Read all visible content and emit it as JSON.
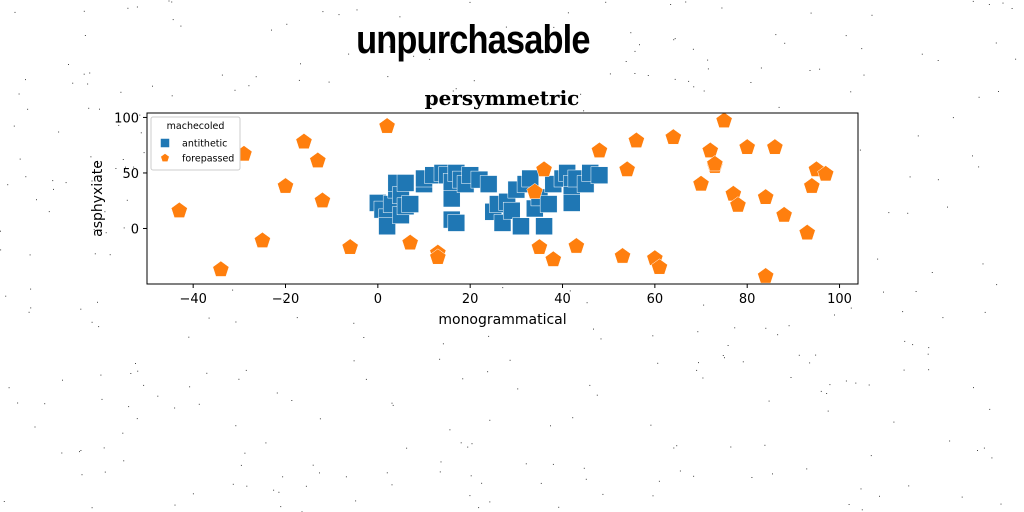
{
  "banner": {
    "title": "unpurchasable"
  },
  "chart_data": {
    "type": "scatter",
    "title": "persymmetric",
    "xlabel": "monogrammatical",
    "ylabel": "asphyxiate",
    "xlim": [
      -50,
      104
    ],
    "ylim": [
      -50,
      104
    ],
    "xticks": [
      -40,
      -20,
      0,
      20,
      40,
      60,
      80,
      100
    ],
    "yticks": [
      0,
      50,
      100
    ],
    "xtick_labels": [
      "−40",
      "−20",
      "0",
      "20",
      "40",
      "60",
      "80",
      "100"
    ],
    "ytick_labels": [
      "0",
      "50",
      "100"
    ],
    "grid": false,
    "legend": {
      "title": "machecoled",
      "placement": "top-left"
    },
    "series": [
      {
        "name": "antithetic",
        "marker": "square",
        "color": "#1f77b4",
        "points": [
          [
            0,
            23
          ],
          [
            1,
            17
          ],
          [
            2,
            10
          ],
          [
            2,
            2
          ],
          [
            3,
            22
          ],
          [
            4,
            35
          ],
          [
            4,
            41
          ],
          [
            5,
            12
          ],
          [
            5,
            30
          ],
          [
            6,
            41
          ],
          [
            6,
            20
          ],
          [
            7,
            22
          ],
          [
            10,
            40
          ],
          [
            10,
            45
          ],
          [
            12,
            48
          ],
          [
            14,
            50
          ],
          [
            15,
            48
          ],
          [
            16,
            8
          ],
          [
            16,
            27
          ],
          [
            16,
            42
          ],
          [
            17,
            5
          ],
          [
            17,
            50
          ],
          [
            18,
            44
          ],
          [
            19,
            40
          ],
          [
            20,
            48
          ],
          [
            22,
            44
          ],
          [
            24,
            40
          ],
          [
            25,
            15
          ],
          [
            26,
            22
          ],
          [
            27,
            5
          ],
          [
            28,
            24
          ],
          [
            29,
            16
          ],
          [
            30,
            35
          ],
          [
            31,
            2
          ],
          [
            32,
            40
          ],
          [
            33,
            45
          ],
          [
            34,
            18
          ],
          [
            35,
            28
          ],
          [
            36,
            2
          ],
          [
            37,
            22
          ],
          [
            38,
            40
          ],
          [
            40,
            45
          ],
          [
            41,
            50
          ],
          [
            42,
            40
          ],
          [
            42,
            30
          ],
          [
            42,
            23
          ],
          [
            43,
            45
          ],
          [
            45,
            40
          ],
          [
            46,
            50
          ],
          [
            48,
            48
          ]
        ]
      },
      {
        "name": "forepassed",
        "marker": "pentagon",
        "color": "#ff7f0e",
        "points": [
          [
            -43,
            16
          ],
          [
            -35,
            75
          ],
          [
            -34,
            -37
          ],
          [
            -29,
            67
          ],
          [
            -25,
            -11
          ],
          [
            -20,
            38
          ],
          [
            -16,
            78
          ],
          [
            -13,
            61
          ],
          [
            -12,
            25
          ],
          [
            -6,
            -17
          ],
          [
            2,
            92
          ],
          [
            7,
            -13
          ],
          [
            13,
            -22
          ],
          [
            13,
            -26
          ],
          [
            34,
            33
          ],
          [
            35,
            -17
          ],
          [
            36,
            53
          ],
          [
            38,
            -28
          ],
          [
            43,
            -16
          ],
          [
            48,
            70
          ],
          [
            53,
            -25
          ],
          [
            54,
            53
          ],
          [
            56,
            79
          ],
          [
            60,
            -27
          ],
          [
            61,
            -35
          ],
          [
            64,
            82
          ],
          [
            70,
            40
          ],
          [
            72,
            70
          ],
          [
            73,
            56
          ],
          [
            73,
            58
          ],
          [
            75,
            97
          ],
          [
            77,
            31
          ],
          [
            78,
            21
          ],
          [
            80,
            73
          ],
          [
            84,
            -43
          ],
          [
            84,
            28
          ],
          [
            86,
            73
          ],
          [
            88,
            12
          ],
          [
            93,
            -4
          ],
          [
            94,
            38
          ],
          [
            95,
            53
          ],
          [
            97,
            49
          ]
        ]
      }
    ]
  }
}
